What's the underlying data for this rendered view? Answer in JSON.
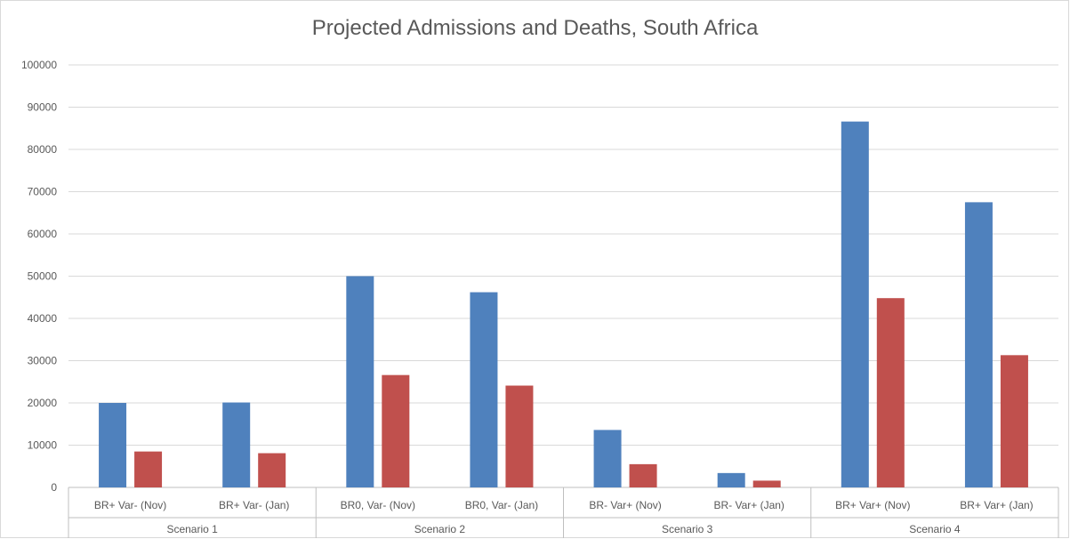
{
  "chart_data": {
    "type": "bar",
    "title": "Projected Admissions and Deaths, South Africa",
    "xlabel": "",
    "ylabel": "",
    "ylim": [
      0,
      100000
    ],
    "yticks": [
      0,
      10000,
      20000,
      30000,
      40000,
      50000,
      60000,
      70000,
      80000,
      90000,
      100000
    ],
    "grid": true,
    "legend": "none",
    "categories": [
      "BR+ Var- (Nov)",
      "BR+ Var- (Jan)",
      "BR0, Var- (Nov)",
      "BR0, Var- (Jan)",
      "BR- Var+ (Nov)",
      "BR- Var+ (Jan)",
      "BR+ Var+ (Nov)",
      "BR+ Var+ (Jan)"
    ],
    "groups": [
      {
        "label": "Scenario 1",
        "categories": [
          "BR+ Var- (Nov)",
          "BR+ Var- (Jan)"
        ]
      },
      {
        "label": "Scenario 2",
        "categories": [
          "BR0, Var- (Nov)",
          "BR0, Var- (Jan)"
        ]
      },
      {
        "label": "Scenario 3",
        "categories": [
          "BR- Var+ (Nov)",
          "BR- Var+ (Jan)"
        ]
      },
      {
        "label": "Scenario 4",
        "categories": [
          "BR+ Var+ (Nov)",
          "BR+ Var+ (Jan)"
        ]
      }
    ],
    "series": [
      {
        "color": "#4f81bd",
        "values": [
          20000,
          20100,
          50000,
          46200,
          13600,
          3400,
          86600,
          67500
        ]
      },
      {
        "color": "#c0504d",
        "values": [
          8500,
          8100,
          26600,
          24100,
          5500,
          1600,
          44800,
          31300
        ]
      }
    ]
  }
}
